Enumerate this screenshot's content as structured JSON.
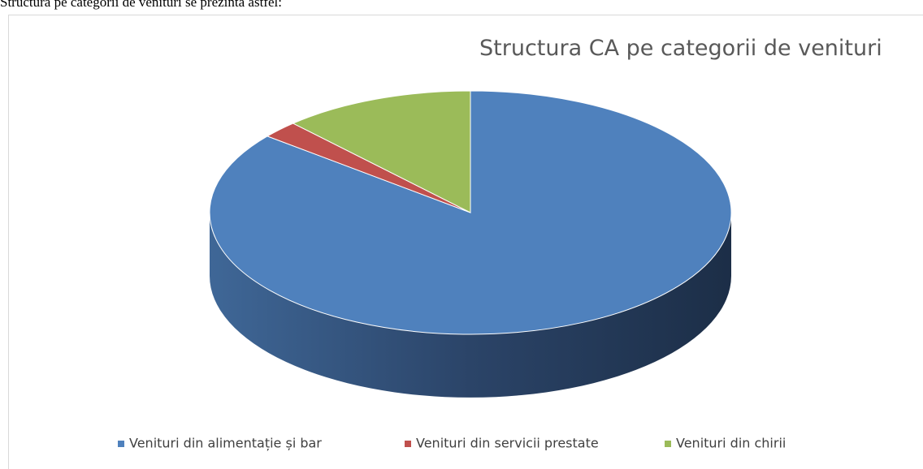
{
  "doc_text": "Structura pe categorii de venituri se prezintă astfel:",
  "chart_data": {
    "type": "pie",
    "title": "Structura CA pe categorii de venituri",
    "categories": [
      "Venituri din alimentație și bar",
      "Venituri din servicii prestate",
      "Venituri din chirii"
    ],
    "values": [
      85.8,
      2.3,
      11.9
    ],
    "colors": [
      "#4f81bd",
      "#c0504d",
      "#9bbb59"
    ],
    "legend": "bottom"
  }
}
